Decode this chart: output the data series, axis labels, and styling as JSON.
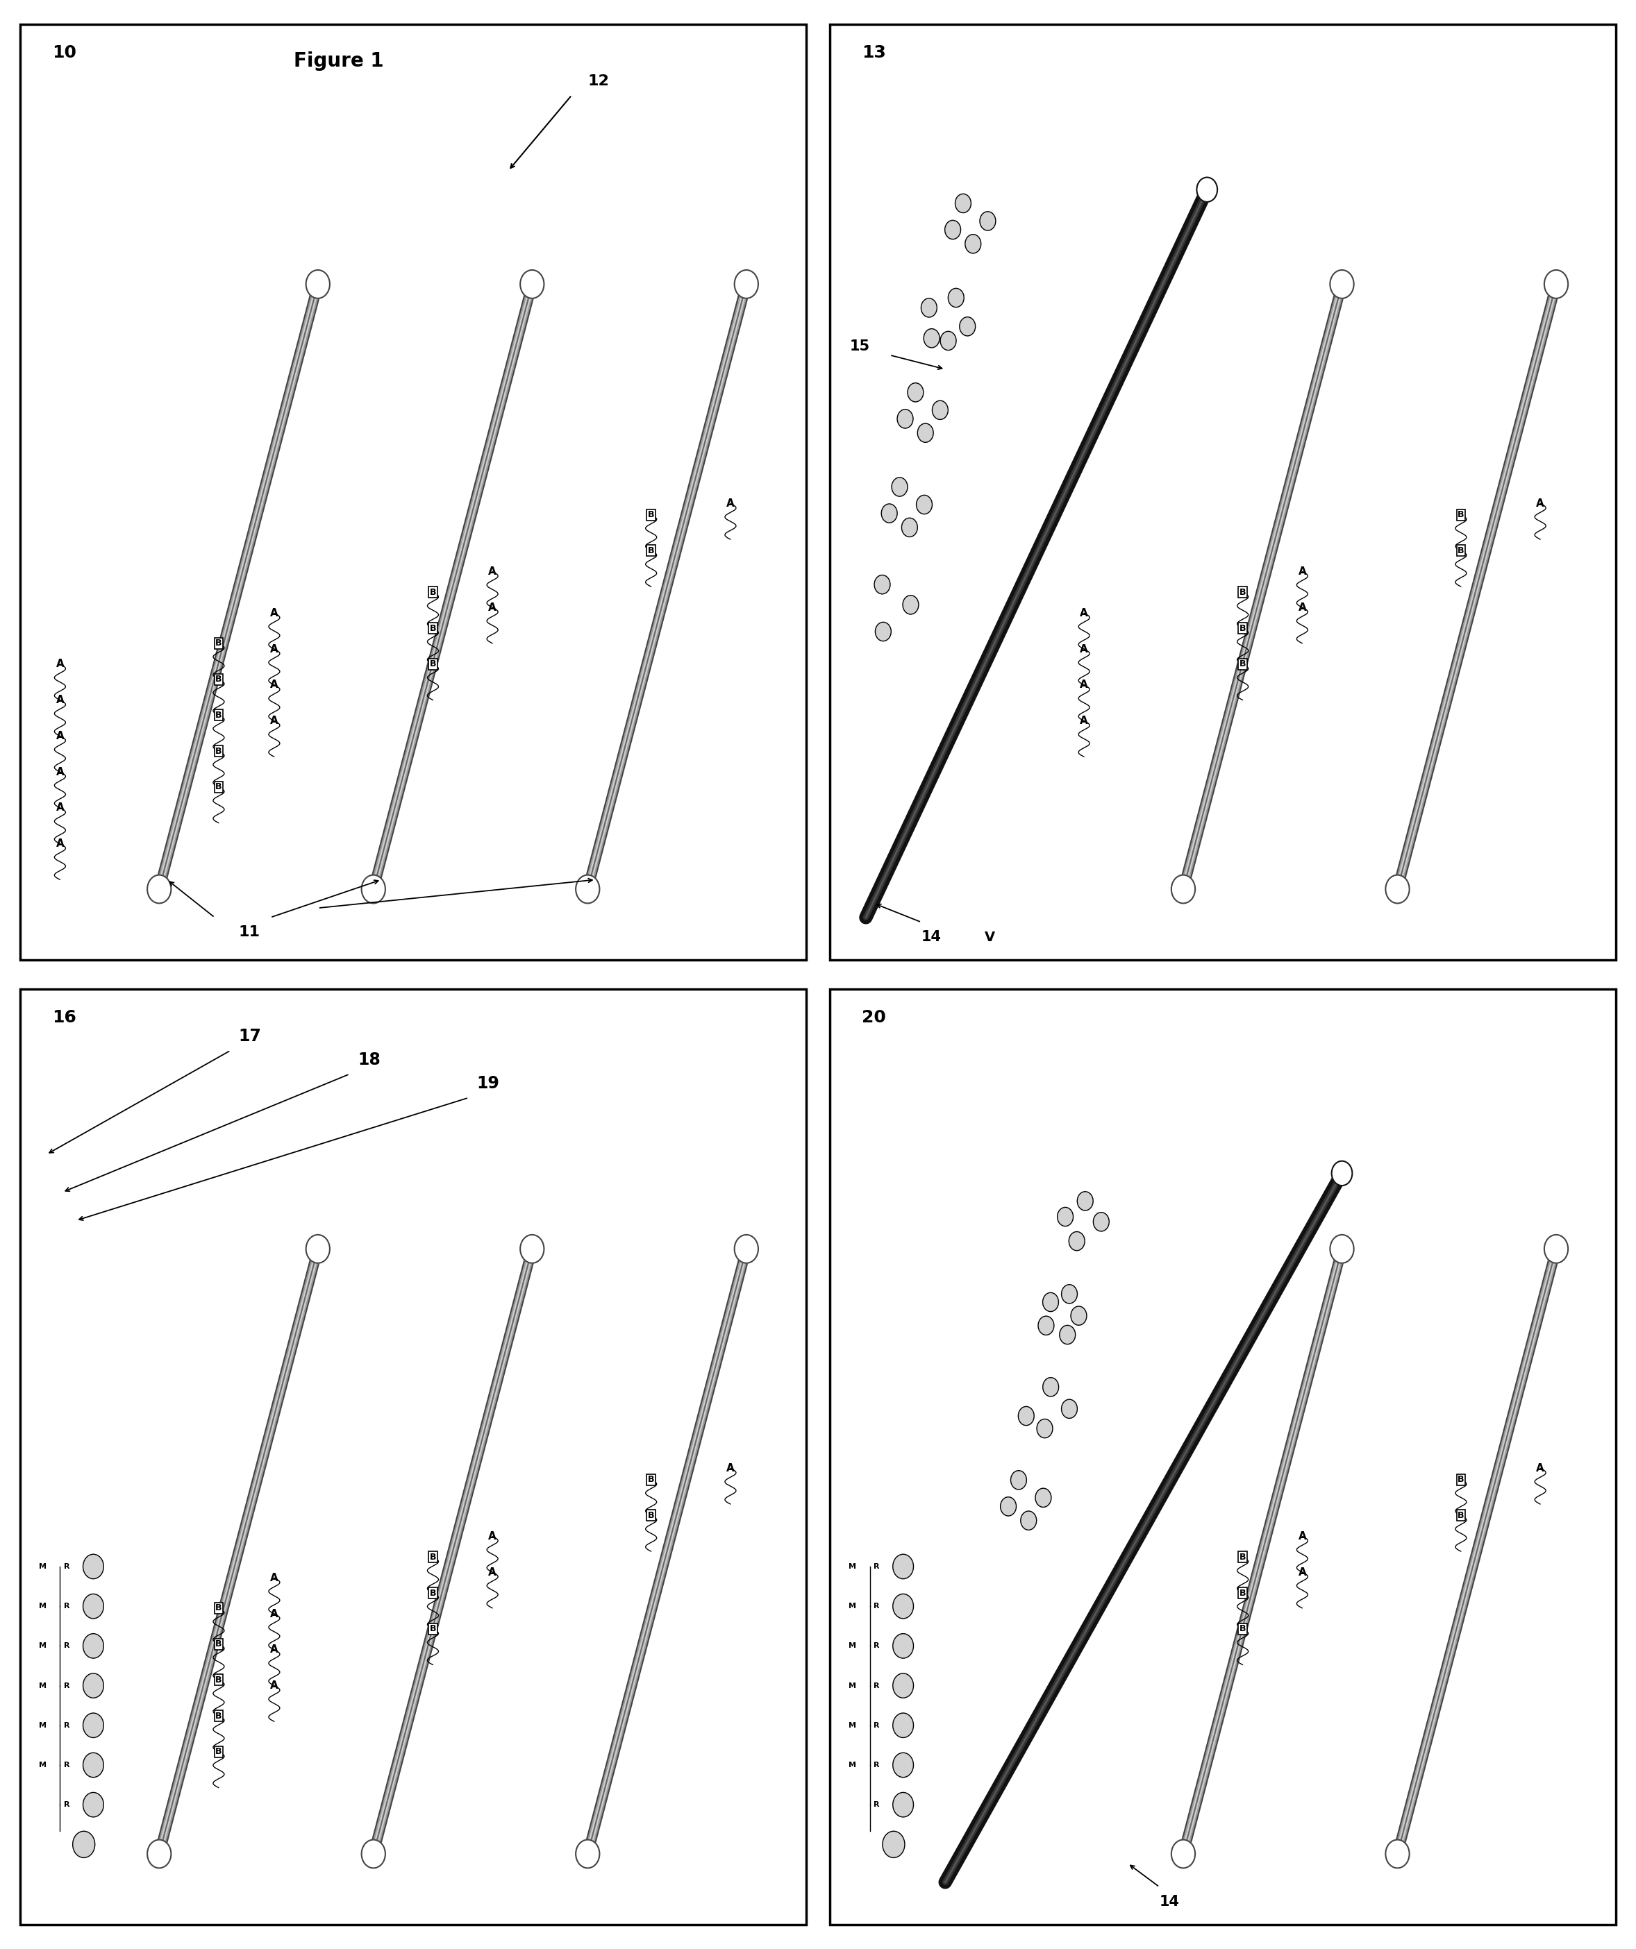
{
  "bg_color": "#ffffff",
  "tube_outer": "#444444",
  "tube_mid": "#aaaaaa",
  "tube_inner": "#dddddd",
  "tube_dark_outer": "#111111",
  "tube_dark_mid": "#333333",
  "chain_color": "#000000",
  "panels": [
    {
      "label": "10",
      "title": "Figure 1",
      "label12": "12"
    },
    {
      "label": "13"
    },
    {
      "label": "16",
      "label17": "17",
      "label18": "18",
      "label19": "19"
    },
    {
      "label": "20"
    }
  ]
}
